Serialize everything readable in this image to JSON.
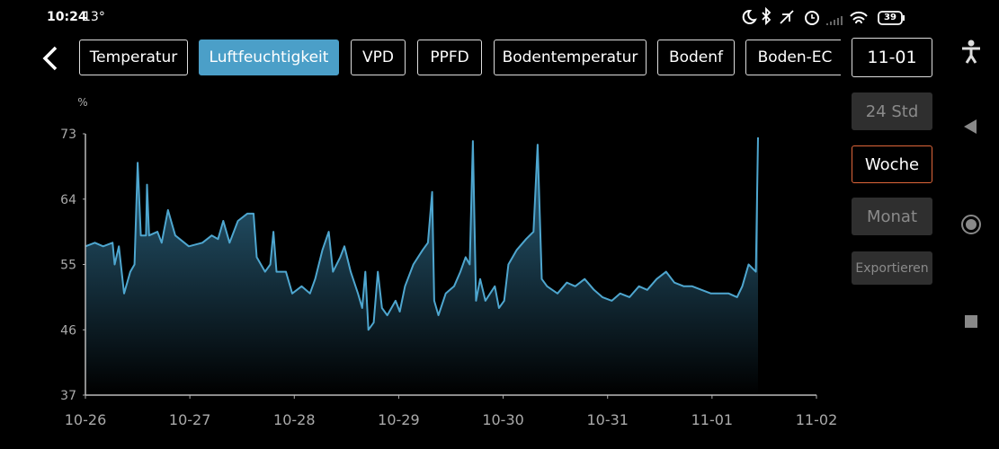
{
  "status_bar": {
    "time": "10:24",
    "temperature": "13°",
    "battery": "39"
  },
  "tabs": [
    "Temperatur",
    "Luftfeuchtigkeit",
    "VPD",
    "PPFD",
    "Bodentemperatur",
    "Bodenf",
    "Boden-EC"
  ],
  "date": "11-01",
  "ranges": [
    "24 Std",
    "Woche",
    "Monat"
  ],
  "export": "Exportieren",
  "chart_data": {
    "type": "line",
    "y_unit": "%",
    "x": [
      0,
      0.09,
      0.17,
      0.26,
      0.28,
      0.32,
      0.37,
      0.43,
      0.47,
      0.5,
      0.53,
      0.58,
      0.59,
      0.61,
      0.69,
      0.73,
      0.79,
      0.86,
      0.99,
      1.12,
      1.21,
      1.27,
      1.32,
      1.38,
      1.46,
      1.55,
      1.61,
      1.64,
      1.72,
      1.77,
      1.8,
      1.83,
      1.92,
      1.98,
      2.07,
      2.15,
      2.2,
      2.27,
      2.33,
      2.37,
      2.44,
      2.48,
      2.54,
      2.61,
      2.65,
      2.68,
      2.71,
      2.76,
      2.8,
      2.84,
      2.89,
      2.97,
      3.01,
      3.06,
      3.14,
      3.23,
      3.28,
      3.32,
      3.34,
      3.38,
      3.45,
      3.53,
      3.59,
      3.64,
      3.68,
      3.71,
      3.74,
      3.78,
      3.83,
      3.92,
      3.96,
      4.01,
      4.05,
      4.13,
      4.22,
      4.29,
      4.33,
      4.37,
      4.42,
      4.52,
      4.61,
      4.69,
      4.78,
      4.87,
      4.95,
      5.04,
      5.12,
      5.21,
      5.3,
      5.38,
      5.47,
      5.56,
      5.64,
      5.73,
      5.81,
      5.9,
      5.99,
      6.07,
      6.16,
      6.24,
      6.29,
      6.35,
      6.42,
      6.44
    ],
    "series": [
      {
        "color": "#4ea6cf",
        "values": [
          57.5,
          58,
          57.5,
          58,
          55,
          57.5,
          51,
          54,
          55,
          69,
          59,
          59,
          66,
          59,
          59.5,
          58,
          62.5,
          59,
          57.5,
          58,
          59,
          58.5,
          61,
          58,
          61,
          62,
          62,
          56,
          54,
          55,
          59.5,
          54,
          54,
          51,
          52,
          51,
          53,
          57,
          59.5,
          54,
          56,
          57.5,
          54,
          51,
          49,
          54,
          46,
          47,
          54,
          49,
          48,
          50,
          48.5,
          52,
          55,
          57,
          58,
          65,
          50,
          48,
          51,
          52,
          54,
          56,
          55,
          72,
          50,
          53,
          50,
          52,
          49,
          50,
          55,
          57,
          58.5,
          59.5,
          71.5,
          53,
          52,
          51,
          52.5,
          52,
          53,
          51.5,
          50.5,
          50,
          51,
          50.5,
          52,
          51.5,
          53,
          54,
          52.5,
          52,
          52,
          51.5,
          51,
          51,
          51,
          50.5,
          52,
          55,
          54,
          72.5
        ]
      }
    ],
    "xlim": [
      0,
      7
    ],
    "xticks": [
      {
        "value": 0,
        "label": "10-26"
      },
      {
        "value": 1,
        "label": "10-27"
      },
      {
        "value": 2,
        "label": "10-28"
      },
      {
        "value": 3,
        "label": "10-29"
      },
      {
        "value": 4,
        "label": "10-30"
      },
      {
        "value": 5,
        "label": "10-31"
      },
      {
        "value": 6,
        "label": "11-01"
      },
      {
        "value": 7,
        "label": "11-02"
      }
    ],
    "ylim": [
      37,
      73
    ],
    "yticks": [
      37,
      46,
      55,
      64,
      73
    ],
    "area": true
  }
}
